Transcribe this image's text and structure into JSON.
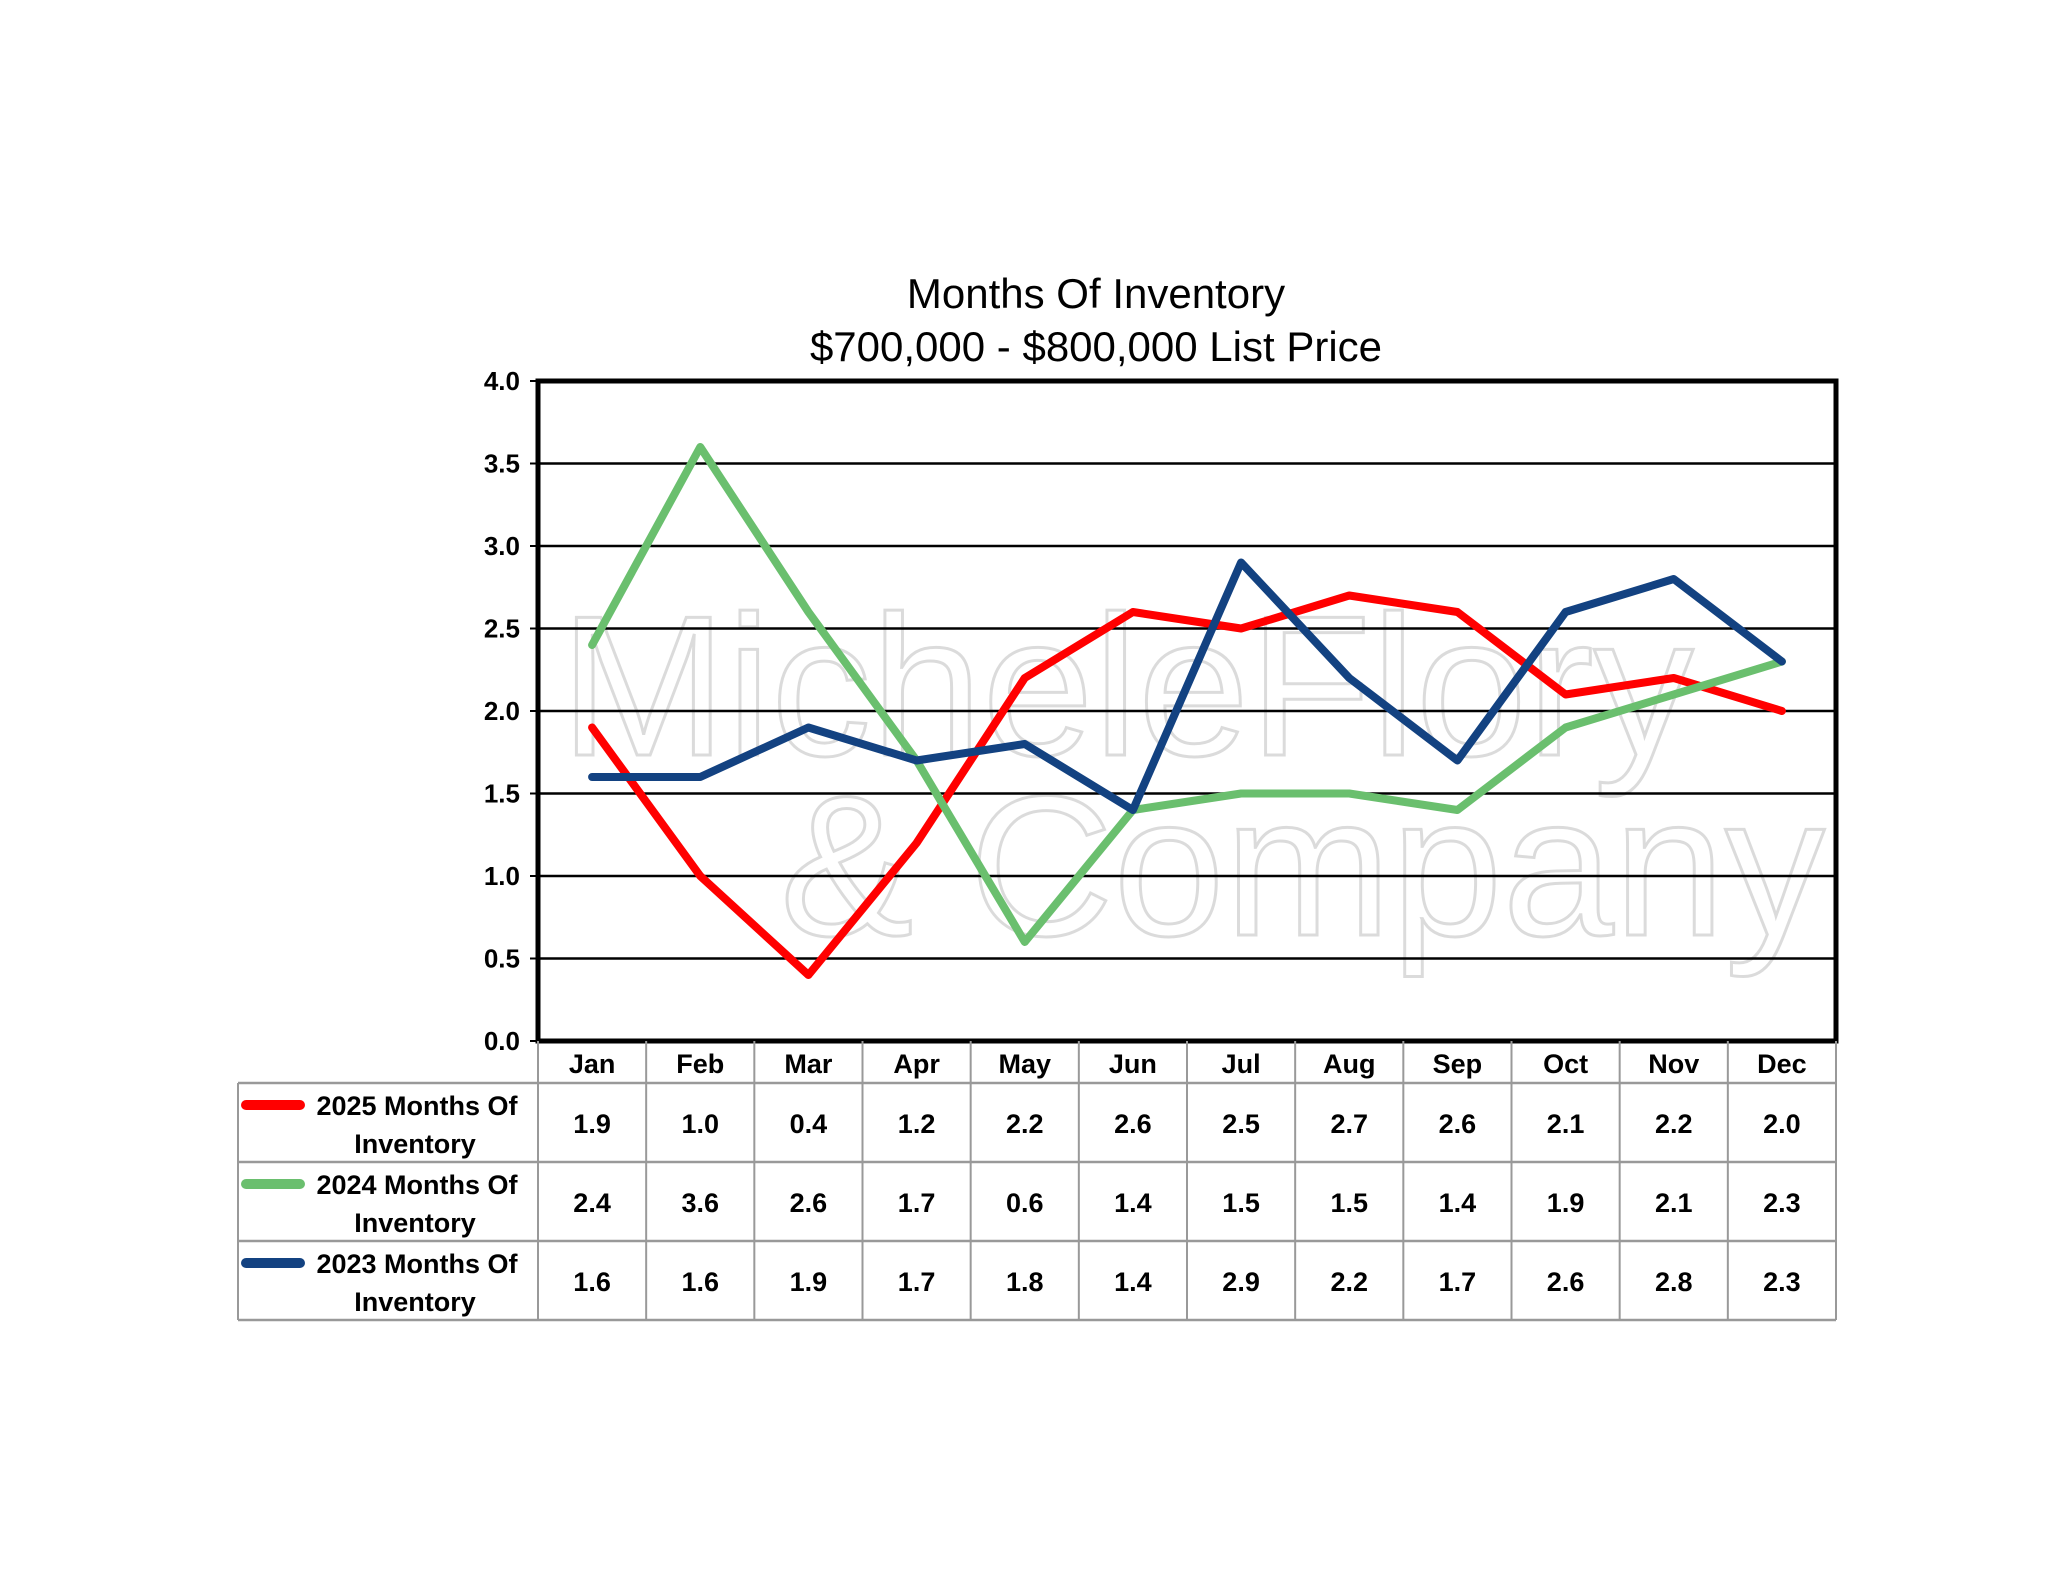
{
  "chart_data": {
    "type": "line",
    "title": "Months Of Inventory",
    "subtitle": "$700,000 - $800,000 List Price",
    "xlabel": "",
    "ylabel": "",
    "ylim": [
      0,
      4.0
    ],
    "yticks": [
      "0.0",
      "0.5",
      "1.0",
      "1.5",
      "2.0",
      "2.5",
      "3.0",
      "3.5",
      "4.0"
    ],
    "grid": true,
    "legend_placement": "data-table-left",
    "categories": [
      "Jan",
      "Feb",
      "Mar",
      "Apr",
      "May",
      "Jun",
      "Jul",
      "Aug",
      "Sep",
      "Oct",
      "Nov",
      "Dec"
    ],
    "series": [
      {
        "name": "2025 Months Of Inventory",
        "name_line1": "2025 Months Of",
        "name_line2": "Inventory",
        "color": "#ff0000",
        "values": [
          1.9,
          1.0,
          0.4,
          1.2,
          2.2,
          2.6,
          2.5,
          2.7,
          2.6,
          2.1,
          2.2,
          2.0
        ],
        "labels": [
          "1.9",
          "1.0",
          "0.4",
          "1.2",
          "2.2",
          "2.6",
          "2.5",
          "2.7",
          "2.6",
          "2.1",
          "2.2",
          "2.0"
        ]
      },
      {
        "name": "2024 Months Of Inventory",
        "name_line1": "2024 Months Of",
        "name_line2": "Inventory",
        "color": "#6abf6e",
        "values": [
          2.4,
          3.6,
          2.6,
          1.7,
          0.6,
          1.4,
          1.5,
          1.5,
          1.4,
          1.9,
          2.1,
          2.3
        ],
        "labels": [
          "2.4",
          "3.6",
          "2.6",
          "1.7",
          "0.6",
          "1.4",
          "1.5",
          "1.5",
          "1.4",
          "1.9",
          "2.1",
          "2.3"
        ]
      },
      {
        "name": "2023 Months Of Inventory",
        "name_line1": "2023 Months Of",
        "name_line2": "Inventory",
        "color": "#134281",
        "values": [
          1.6,
          1.6,
          1.9,
          1.7,
          1.8,
          1.4,
          2.9,
          2.2,
          1.7,
          2.6,
          2.8,
          2.3
        ],
        "labels": [
          "1.6",
          "1.6",
          "1.9",
          "1.7",
          "1.8",
          "1.4",
          "2.9",
          "2.2",
          "1.7",
          "2.6",
          "2.8",
          "2.3"
        ]
      }
    ]
  },
  "watermark": {
    "line1": "MicheleFlory",
    "line2": "& Company"
  }
}
